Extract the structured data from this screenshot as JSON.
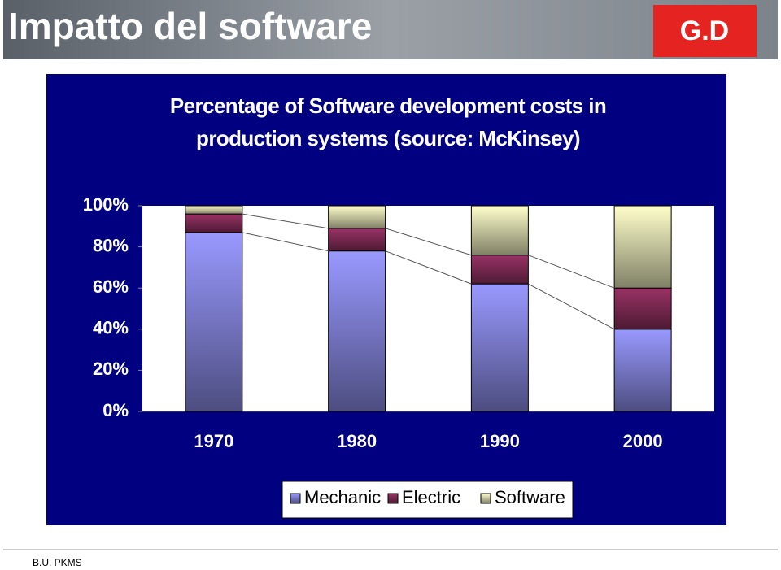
{
  "header": {
    "title": "Impatto del software",
    "logo": "G.D"
  },
  "footer": "B.U. PKMS",
  "chart_data": {
    "type": "stacked-bar",
    "title": "Percentage of Software development costs in production systems (source: McKinsey)",
    "categories": [
      "1970",
      "1980",
      "1990",
      "2000"
    ],
    "series": [
      {
        "name": "Mechanic",
        "color": "#9999ff",
        "values": [
          87,
          78,
          62,
          40
        ]
      },
      {
        "name": "Electric",
        "color": "#993366",
        "values": [
          9,
          11,
          14,
          20
        ]
      },
      {
        "name": "Software",
        "color": "#ffffcc",
        "values": [
          4,
          11,
          24,
          40
        ]
      }
    ],
    "ylim": [
      0,
      100
    ],
    "yticks": [
      {
        "value": 0,
        "label": "0%"
      },
      {
        "value": 20,
        "label": "20%"
      },
      {
        "value": 40,
        "label": "40%"
      },
      {
        "value": 60,
        "label": "60%"
      },
      {
        "value": 80,
        "label": "80%"
      },
      {
        "value": 100,
        "label": "100%"
      }
    ],
    "series_lines": true,
    "legend": "bottom"
  }
}
